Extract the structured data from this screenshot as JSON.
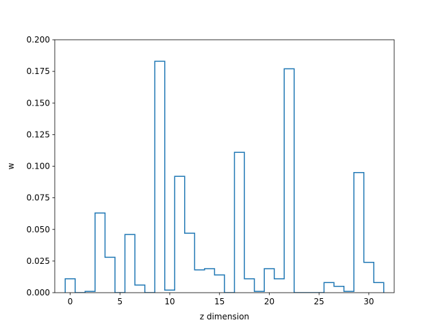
{
  "chart_data": {
    "type": "bar",
    "style": "step",
    "title": "",
    "xlabel": "z dimension",
    "ylabel": "w",
    "xlim": [
      -1.55,
      32.55
    ],
    "ylim": [
      0.0,
      0.2
    ],
    "xticks": [
      0,
      5,
      10,
      15,
      20,
      25,
      30
    ],
    "yticks": [
      0.0,
      0.025,
      0.05,
      0.075,
      0.1,
      0.125,
      0.15,
      0.175,
      0.2
    ],
    "ytick_labels": [
      "0.000",
      "0.025",
      "0.050",
      "0.075",
      "0.100",
      "0.125",
      "0.150",
      "0.175",
      "0.200"
    ],
    "grid": false,
    "legend": "none",
    "line_color": "#1f77b4",
    "categories": [
      0,
      1,
      2,
      3,
      4,
      5,
      6,
      7,
      8,
      9,
      10,
      11,
      12,
      13,
      14,
      15,
      16,
      17,
      18,
      19,
      20,
      21,
      22,
      23,
      24,
      25,
      26,
      27,
      28,
      29,
      30,
      31
    ],
    "values": [
      0.011,
      0.0,
      0.001,
      0.063,
      0.028,
      0.0,
      0.046,
      0.006,
      0.0,
      0.183,
      0.002,
      0.092,
      0.047,
      0.018,
      0.019,
      0.014,
      0.0,
      0.111,
      0.011,
      0.001,
      0.019,
      0.011,
      0.177,
      0.0,
      0.0,
      0.0,
      0.008,
      0.005,
      0.001,
      0.095,
      0.024,
      0.008
    ]
  }
}
